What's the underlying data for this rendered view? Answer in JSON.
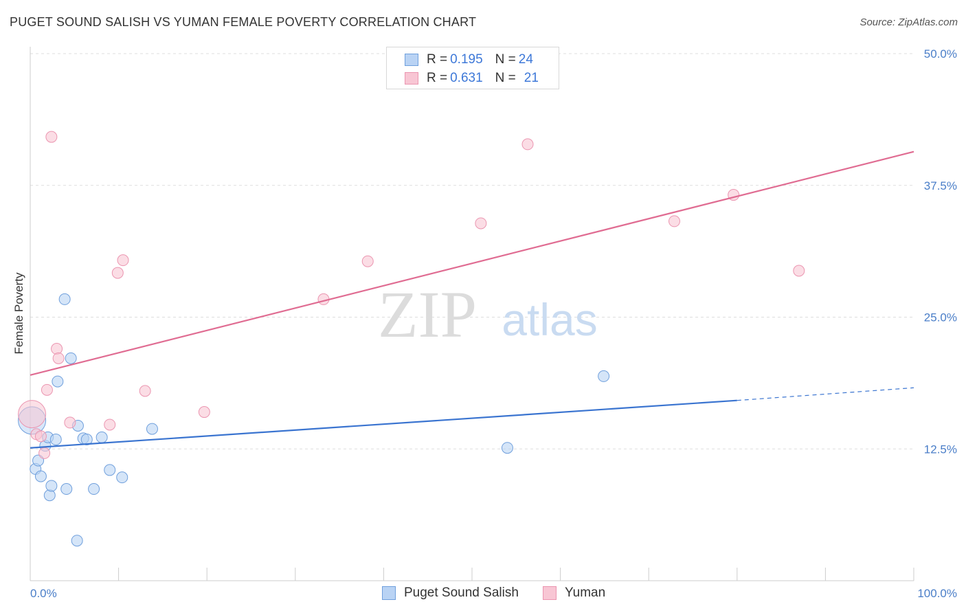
{
  "header": {
    "title": "PUGET SOUND SALISH VS YUMAN FEMALE POVERTY CORRELATION CHART",
    "source": "Source: ZipAtlas.com"
  },
  "watermark": {
    "zip": "ZIP",
    "atlas": "atlas"
  },
  "legend_top": [
    {
      "r_label": "R = ",
      "r_value": "0.195",
      "n_label": "N = ",
      "n_value": "24"
    },
    {
      "r_label": "R = ",
      "r_value": "0.631",
      "n_label": "N = ",
      "n_value": "21"
    }
  ],
  "chart_data": {
    "type": "scatter",
    "title": "PUGET SOUND SALISH VS YUMAN FEMALE POVERTY CORRELATION CHART",
    "xlabel": "",
    "ylabel": "Female Poverty",
    "xlim": [
      0,
      100
    ],
    "ylim": [
      0,
      50
    ],
    "y_ticks": [
      {
        "value": 12.5,
        "label": "12.5%"
      },
      {
        "value": 25.0,
        "label": "25.0%"
      },
      {
        "value": 37.5,
        "label": "37.5%"
      },
      {
        "value": 50.0,
        "label": "50.0%"
      }
    ],
    "x_tick_labels": [
      {
        "value": 0,
        "label": "0.0%"
      },
      {
        "value": 100,
        "label": "100.0%"
      }
    ],
    "legend_placement": "top-center",
    "colors": {
      "blue_fill": "#b9d3f4",
      "blue_stroke": "#6f9fdc",
      "blue_line": "#3a74d0",
      "pink_fill": "#f8c6d4",
      "pink_stroke": "#eb95b0",
      "pink_line": "#e06c92",
      "grid": "#dddddd",
      "axis_text": "#4a7ec8"
    },
    "series": [
      {
        "name": "Puget Sound Salish",
        "r": 0.195,
        "n": 24,
        "trend": {
          "x0": 0,
          "y0": 12.6,
          "x1": 80,
          "y1": 17.1,
          "x_dash_end": 100,
          "y_dash_end": 18.3
        },
        "points": [
          {
            "x": 0.2,
            "y": 15.2,
            "size": "large"
          },
          {
            "x": 0.6,
            "y": 10.6
          },
          {
            "x": 0.9,
            "y": 11.4
          },
          {
            "x": 1.2,
            "y": 9.9
          },
          {
            "x": 1.7,
            "y": 12.8
          },
          {
            "x": 2.0,
            "y": 13.6
          },
          {
            "x": 2.2,
            "y": 8.1
          },
          {
            "x": 2.4,
            "y": 9.0
          },
          {
            "x": 2.9,
            "y": 13.4
          },
          {
            "x": 3.1,
            "y": 18.9
          },
          {
            "x": 3.9,
            "y": 26.7
          },
          {
            "x": 4.1,
            "y": 8.7
          },
          {
            "x": 4.6,
            "y": 21.1
          },
          {
            "x": 5.3,
            "y": 3.8
          },
          {
            "x": 5.4,
            "y": 14.7
          },
          {
            "x": 6.0,
            "y": 13.5
          },
          {
            "x": 6.4,
            "y": 13.4
          },
          {
            "x": 7.2,
            "y": 8.7
          },
          {
            "x": 8.1,
            "y": 13.6
          },
          {
            "x": 9.0,
            "y": 10.5
          },
          {
            "x": 10.4,
            "y": 9.8
          },
          {
            "x": 13.8,
            "y": 14.4
          },
          {
            "x": 54.0,
            "y": 12.6
          },
          {
            "x": 64.9,
            "y": 19.4
          }
        ]
      },
      {
        "name": "Yuman",
        "r": 0.631,
        "n": 21,
        "trend": {
          "x0": 0,
          "y0": 19.5,
          "x1": 100,
          "y1": 40.7
        },
        "points": [
          {
            "x": 0.2,
            "y": 15.8,
            "size": "large"
          },
          {
            "x": 0.7,
            "y": 13.9
          },
          {
            "x": 1.2,
            "y": 13.7
          },
          {
            "x": 1.6,
            "y": 12.1
          },
          {
            "x": 1.9,
            "y": 18.1
          },
          {
            "x": 2.4,
            "y": 42.1
          },
          {
            "x": 3.0,
            "y": 22.0
          },
          {
            "x": 3.2,
            "y": 21.1
          },
          {
            "x": 4.5,
            "y": 15.0
          },
          {
            "x": 9.0,
            "y": 14.8
          },
          {
            "x": 9.9,
            "y": 29.2
          },
          {
            "x": 10.5,
            "y": 30.4
          },
          {
            "x": 13.0,
            "y": 18.0
          },
          {
            "x": 19.7,
            "y": 16.0
          },
          {
            "x": 33.2,
            "y": 26.7
          },
          {
            "x": 38.2,
            "y": 30.3
          },
          {
            "x": 51.0,
            "y": 33.9
          },
          {
            "x": 56.3,
            "y": 41.4
          },
          {
            "x": 72.9,
            "y": 34.1
          },
          {
            "x": 79.6,
            "y": 36.6
          },
          {
            "x": 87.0,
            "y": 29.4
          }
        ]
      }
    ]
  }
}
